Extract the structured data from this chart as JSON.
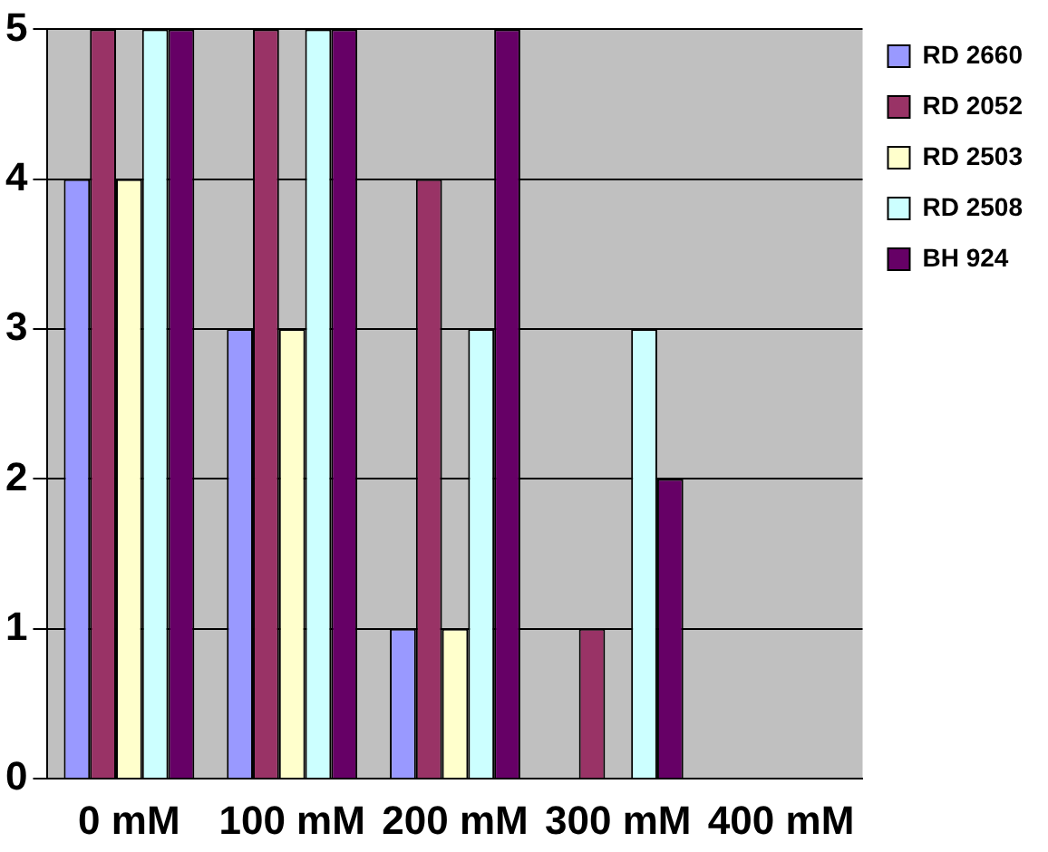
{
  "chart_data": {
    "type": "bar",
    "categories": [
      "0 mM",
      "100 mM",
      "200 mM",
      "300 mM",
      "400 mM"
    ],
    "series": [
      {
        "name": "RD 2660",
        "color": "#9999ff",
        "values": [
          4,
          3,
          1,
          0,
          0
        ]
      },
      {
        "name": "RD 2052",
        "color": "#993366",
        "values": [
          5,
          5,
          4,
          1,
          0
        ]
      },
      {
        "name": "RD 2503",
        "color": "#ffffcc",
        "values": [
          4,
          3,
          1,
          0,
          0
        ]
      },
      {
        "name": "RD 2508",
        "color": "#ccffff",
        "values": [
          5,
          5,
          3,
          3,
          0
        ]
      },
      {
        "name": "BH 924",
        "color": "#660066",
        "values": [
          5,
          5,
          5,
          2,
          0
        ]
      }
    ],
    "ylim": [
      0,
      5
    ],
    "yticks": [
      0,
      1,
      2,
      3,
      4,
      5
    ],
    "grid": "y",
    "legend": "right"
  }
}
